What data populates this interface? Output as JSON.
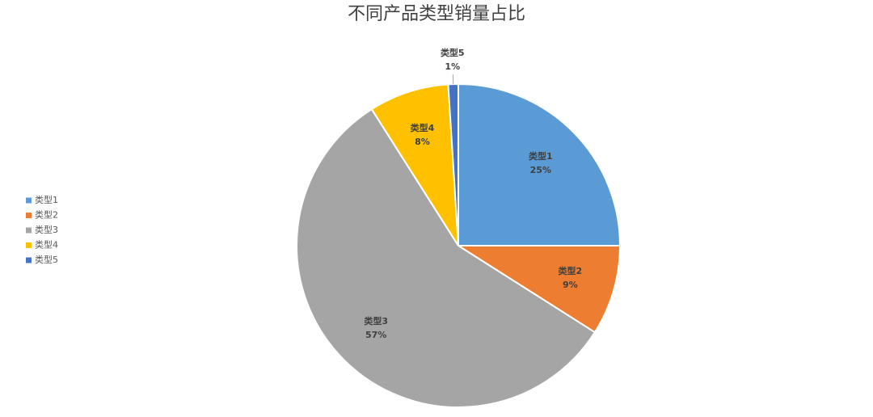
{
  "chart_data": {
    "type": "pie",
    "title": "不同产品类型销量占比",
    "categories": [
      "类型1",
      "类型2",
      "类型3",
      "类型4",
      "类型5"
    ],
    "values": [
      25,
      9,
      57,
      8,
      1
    ],
    "value_labels": [
      "25%",
      "9%",
      "57%",
      "8%",
      "1%"
    ],
    "colors": [
      "#5b9bd5",
      "#ed7d31",
      "#a5a5a5",
      "#ffc000",
      "#4472c4"
    ],
    "legend": "left"
  }
}
